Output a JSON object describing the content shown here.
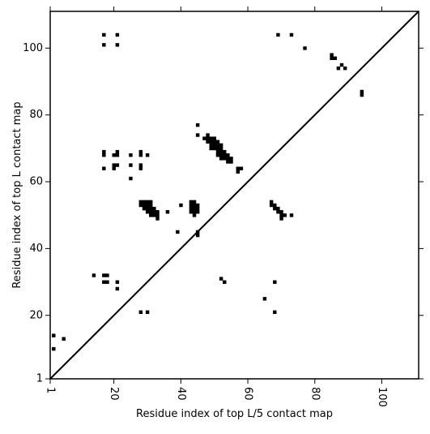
{
  "chart_data": {
    "type": "scatter",
    "xlabel": "Residue index of top L/5 contact map",
    "ylabel": "Residue index of top L contact map",
    "xlim": [
      1,
      111
    ],
    "ylim": [
      1,
      111
    ],
    "x_ticks": [
      {
        "value": 1,
        "label": "1"
      },
      {
        "value": 20,
        "label": "20"
      },
      {
        "value": 40,
        "label": "40"
      },
      {
        "value": 60,
        "label": "60"
      },
      {
        "value": 80,
        "label": "80"
      },
      {
        "value": 100,
        "label": "100"
      }
    ],
    "y_ticks": [
      {
        "value": 1,
        "label": "1"
      },
      {
        "value": 20,
        "label": "20"
      },
      {
        "value": 40,
        "label": "40"
      },
      {
        "value": 60,
        "label": "60"
      },
      {
        "value": 80,
        "label": "80"
      },
      {
        "value": 100,
        "label": "100"
      }
    ],
    "x_tick_label_rotation": 90,
    "grid": false,
    "diagonal_line": true,
    "marker": "square",
    "marker_color": "#000000",
    "points": [
      [
        17,
        104
      ],
      [
        21,
        104
      ],
      [
        17,
        101
      ],
      [
        21,
        101
      ],
      [
        69,
        104
      ],
      [
        73,
        104
      ],
      [
        77,
        100
      ],
      [
        85,
        98
      ],
      [
        86,
        97
      ],
      [
        85,
        97
      ],
      [
        88,
        95
      ],
      [
        87,
        94
      ],
      [
        89,
        94
      ],
      [
        94,
        87
      ],
      [
        94,
        86
      ],
      [
        45,
        77
      ],
      [
        45,
        74
      ],
      [
        48,
        74
      ],
      [
        47,
        73
      ],
      [
        48,
        73
      ],
      [
        49,
        73
      ],
      [
        50,
        73
      ],
      [
        48,
        72
      ],
      [
        49,
        72
      ],
      [
        50,
        72
      ],
      [
        51,
        72
      ],
      [
        49,
        71
      ],
      [
        50,
        71
      ],
      [
        51,
        71
      ],
      [
        52,
        71
      ],
      [
        49,
        70
      ],
      [
        50,
        70
      ],
      [
        51,
        70
      ],
      [
        52,
        70
      ],
      [
        51,
        69
      ],
      [
        52,
        69
      ],
      [
        53,
        69
      ],
      [
        51,
        68
      ],
      [
        52,
        68
      ],
      [
        53,
        68
      ],
      [
        54,
        68
      ],
      [
        52,
        67
      ],
      [
        53,
        67
      ],
      [
        54,
        67
      ],
      [
        55,
        67
      ],
      [
        54,
        66
      ],
      [
        55,
        66
      ],
      [
        57,
        64
      ],
      [
        58,
        64
      ],
      [
        57,
        63
      ],
      [
        17,
        69
      ],
      [
        17,
        68
      ],
      [
        20,
        68
      ],
      [
        21,
        68
      ],
      [
        21,
        69
      ],
      [
        25,
        68
      ],
      [
        28,
        69
      ],
      [
        28,
        68
      ],
      [
        30,
        68
      ],
      [
        17,
        64
      ],
      [
        20,
        65
      ],
      [
        21,
        65
      ],
      [
        20,
        64
      ],
      [
        25,
        65
      ],
      [
        28,
        65
      ],
      [
        28,
        64
      ],
      [
        25,
        61
      ],
      [
        28,
        54
      ],
      [
        29,
        54
      ],
      [
        30,
        54
      ],
      [
        31,
        54
      ],
      [
        28,
        53
      ],
      [
        29,
        53
      ],
      [
        30,
        53
      ],
      [
        31,
        53
      ],
      [
        29,
        52
      ],
      [
        30,
        52
      ],
      [
        31,
        52
      ],
      [
        32,
        52
      ],
      [
        30,
        51
      ],
      [
        31,
        51
      ],
      [
        32,
        51
      ],
      [
        33,
        51
      ],
      [
        31,
        50
      ],
      [
        32,
        50
      ],
      [
        33,
        50
      ],
      [
        33,
        49
      ],
      [
        36,
        51
      ],
      [
        40,
        53
      ],
      [
        43,
        54
      ],
      [
        44,
        54
      ],
      [
        43,
        53
      ],
      [
        44,
        53
      ],
      [
        45,
        53
      ],
      [
        43,
        52
      ],
      [
        44,
        52
      ],
      [
        45,
        52
      ],
      [
        43,
        51
      ],
      [
        44,
        51
      ],
      [
        45,
        51
      ],
      [
        44,
        50
      ],
      [
        39,
        45
      ],
      [
        45,
        45
      ],
      [
        45,
        44
      ],
      [
        67,
        54
      ],
      [
        67,
        53
      ],
      [
        68,
        53
      ],
      [
        68,
        52
      ],
      [
        69,
        52
      ],
      [
        69,
        51
      ],
      [
        70,
        51
      ],
      [
        70,
        50
      ],
      [
        71,
        50
      ],
      [
        70,
        49
      ],
      [
        73,
        50
      ],
      [
        14,
        32
      ],
      [
        17,
        32
      ],
      [
        18,
        32
      ],
      [
        17,
        30
      ],
      [
        18,
        30
      ],
      [
        21,
        30
      ],
      [
        21,
        28
      ],
      [
        52,
        31
      ],
      [
        53,
        30
      ],
      [
        68,
        30
      ],
      [
        65,
        25
      ],
      [
        28,
        21
      ],
      [
        30,
        21
      ],
      [
        68,
        21
      ],
      [
        2,
        14
      ],
      [
        5,
        13
      ],
      [
        2,
        10
      ]
    ]
  }
}
